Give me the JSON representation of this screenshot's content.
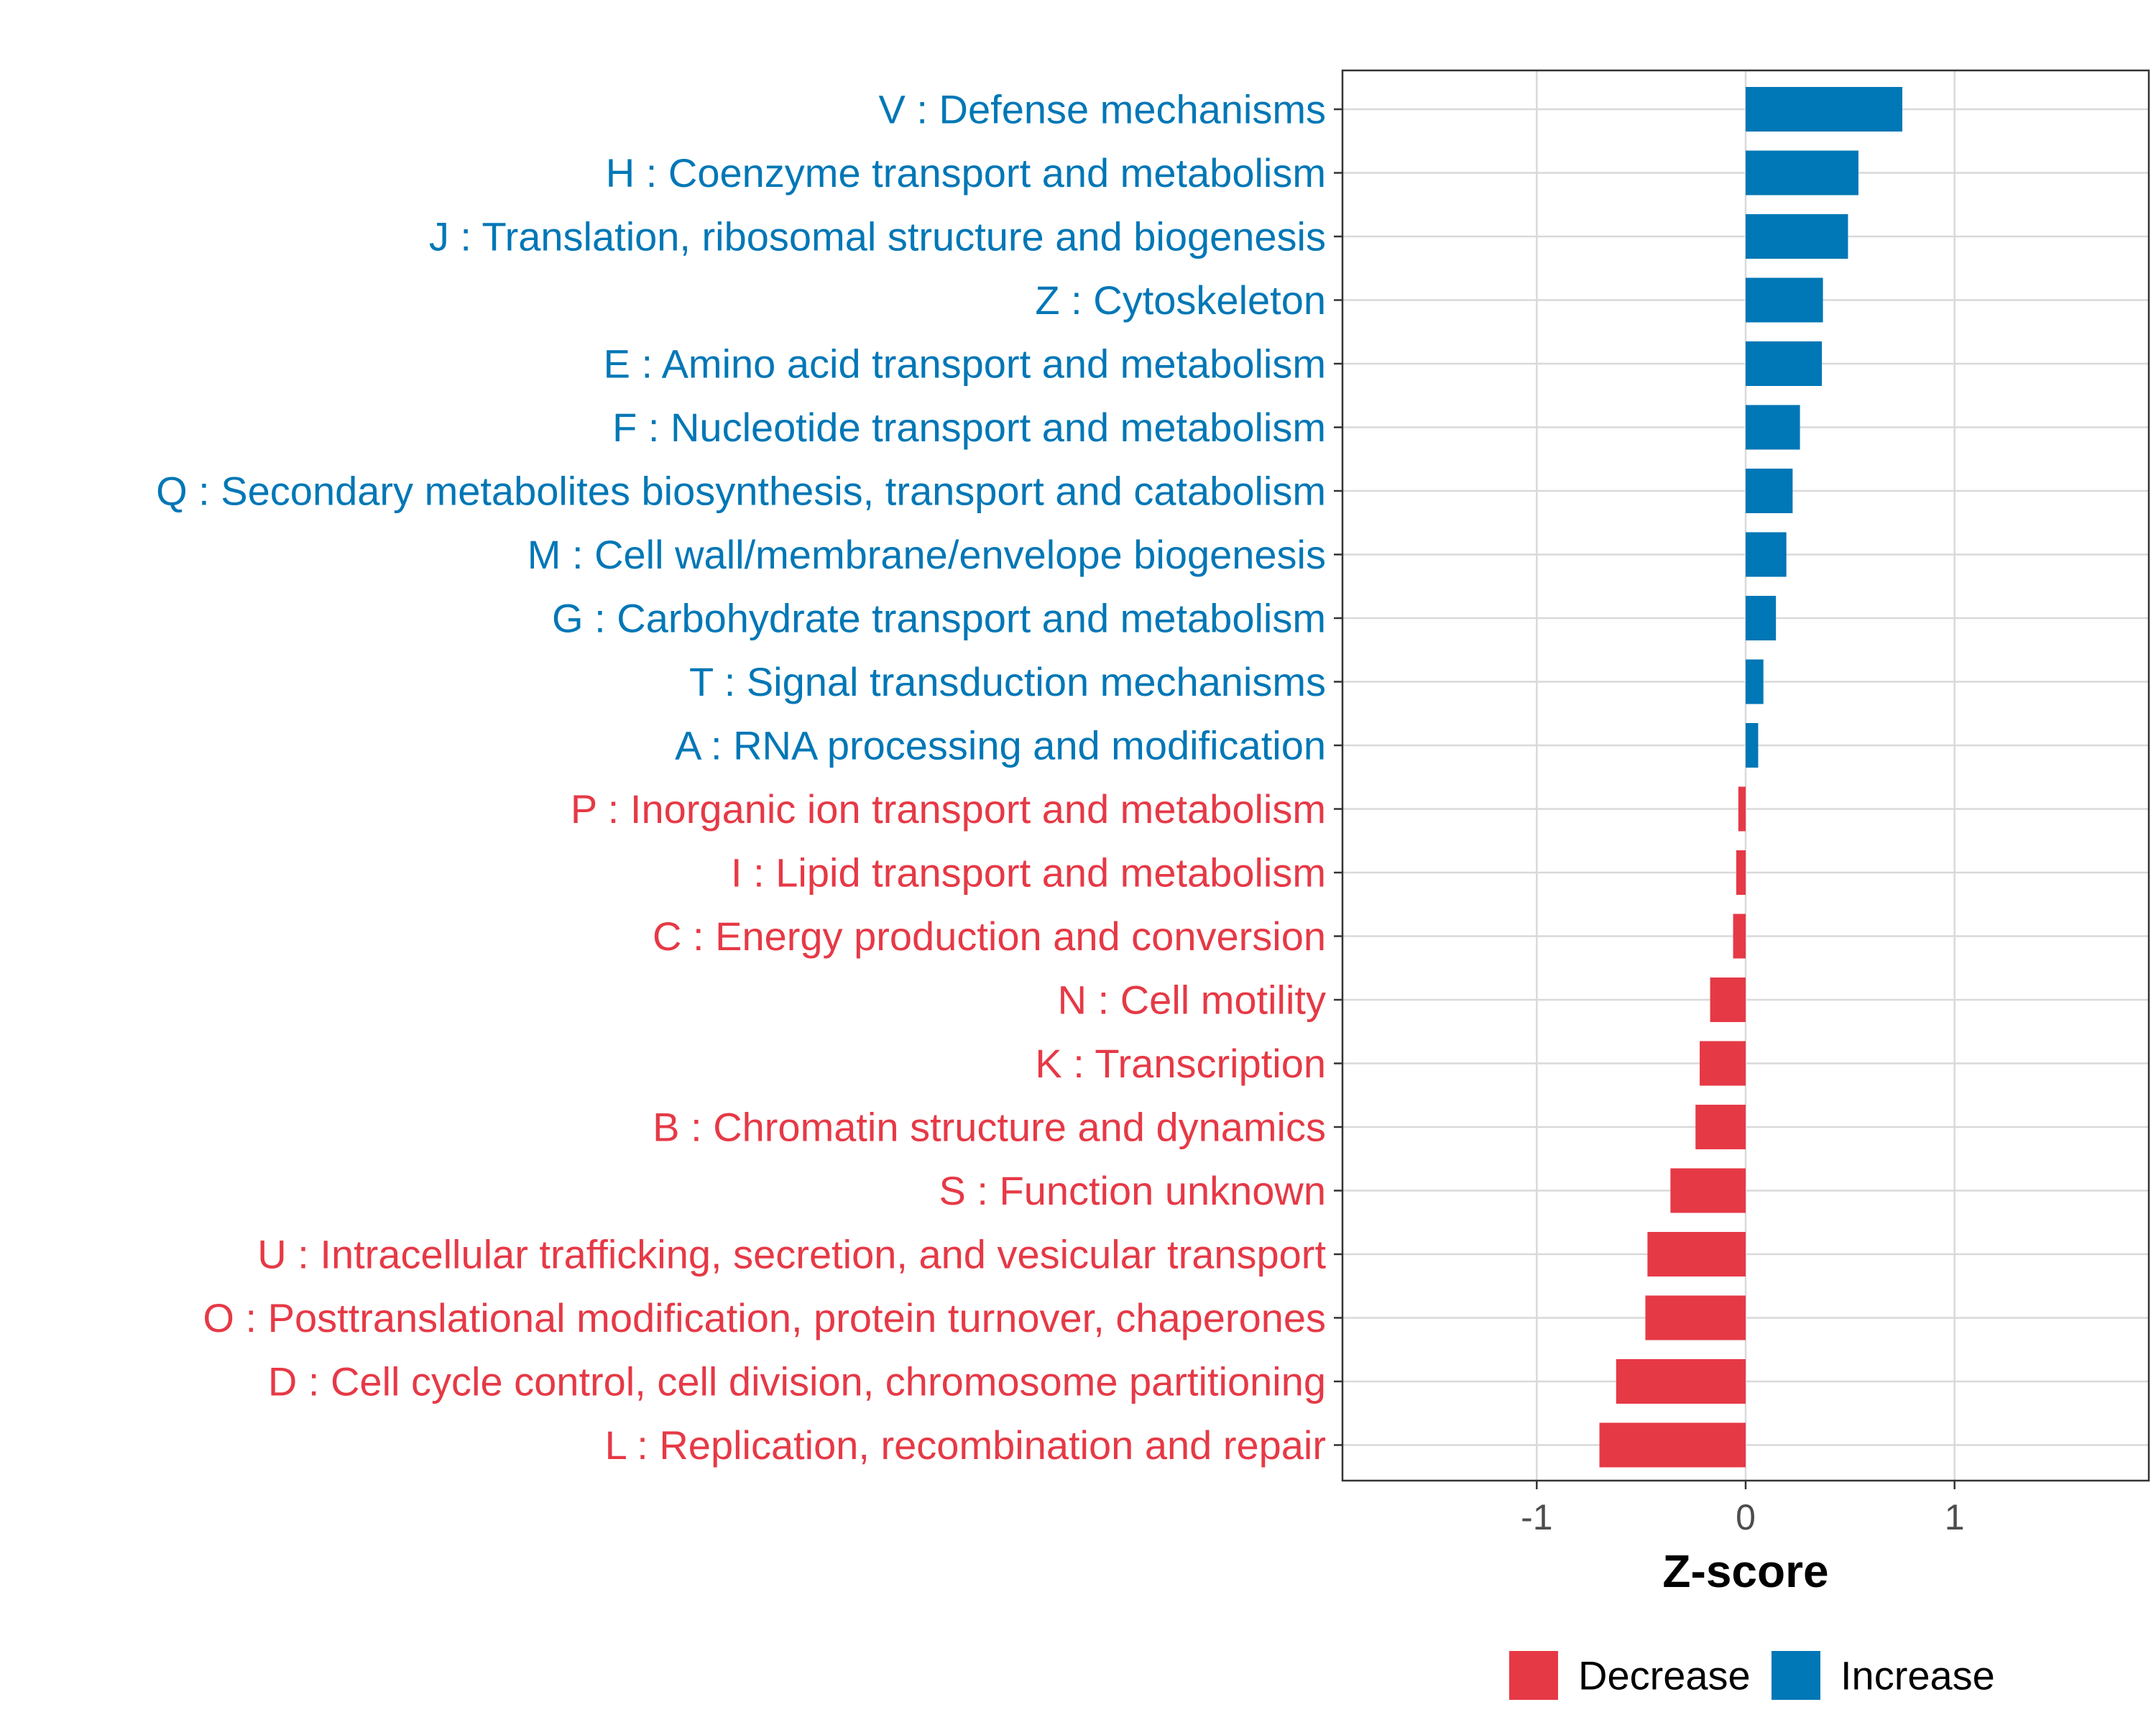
{
  "chart_data": {
    "type": "bar",
    "orientation": "horizontal",
    "xlabel": "Z-score",
    "xlim": [
      -1.93,
      1.93
    ],
    "xticks": [
      -1,
      0,
      1
    ],
    "xtick_labels": [
      "-1",
      "0",
      "1"
    ],
    "grid": true,
    "colors": {
      "Decrease": "#E63946",
      "Increase": "#0077B6"
    },
    "categories": [
      "V : Defense mechanisms",
      "H : Coenzyme transport and metabolism",
      "J : Translation, ribosomal structure and biogenesis",
      "Z : Cytoskeleton",
      "E : Amino acid transport and metabolism",
      "F : Nucleotide transport and metabolism",
      "Q : Secondary metabolites biosynthesis, transport and catabolism",
      "M : Cell wall/membrane/envelope biogenesis",
      "G : Carbohydrate transport and metabolism",
      "T : Signal transduction mechanisms",
      "A : RNA processing and modification",
      "P : Inorganic ion transport and metabolism",
      "I : Lipid transport and metabolism",
      "C : Energy production and conversion",
      "N : Cell motility",
      "K : Transcription",
      "B : Chromatin structure and dynamics",
      "S : Function unknown",
      "U : Intracellular trafficking, secretion, and vesicular transport",
      "O : Posttranslational modification, protein turnover, chaperones",
      "D : Cell cycle control, cell division, chromosome partitioning",
      "L : Replication, recombination and repair"
    ],
    "values": [
      0.75,
      0.54,
      0.49,
      0.37,
      0.365,
      0.26,
      0.225,
      0.195,
      0.145,
      0.085,
      0.06,
      -0.035,
      -0.045,
      -0.06,
      -0.17,
      -0.22,
      -0.24,
      -0.36,
      -0.47,
      -0.48,
      -0.62,
      -0.7
    ],
    "groups": [
      "Increase",
      "Increase",
      "Increase",
      "Increase",
      "Increase",
      "Increase",
      "Increase",
      "Increase",
      "Increase",
      "Increase",
      "Increase",
      "Decrease",
      "Decrease",
      "Decrease",
      "Decrease",
      "Decrease",
      "Decrease",
      "Decrease",
      "Decrease",
      "Decrease",
      "Decrease",
      "Decrease"
    ],
    "legend": {
      "position": "bottom",
      "items": [
        {
          "label": "Decrease",
          "color": "#E63946"
        },
        {
          "label": "Increase",
          "color": "#0077B6"
        }
      ]
    }
  }
}
